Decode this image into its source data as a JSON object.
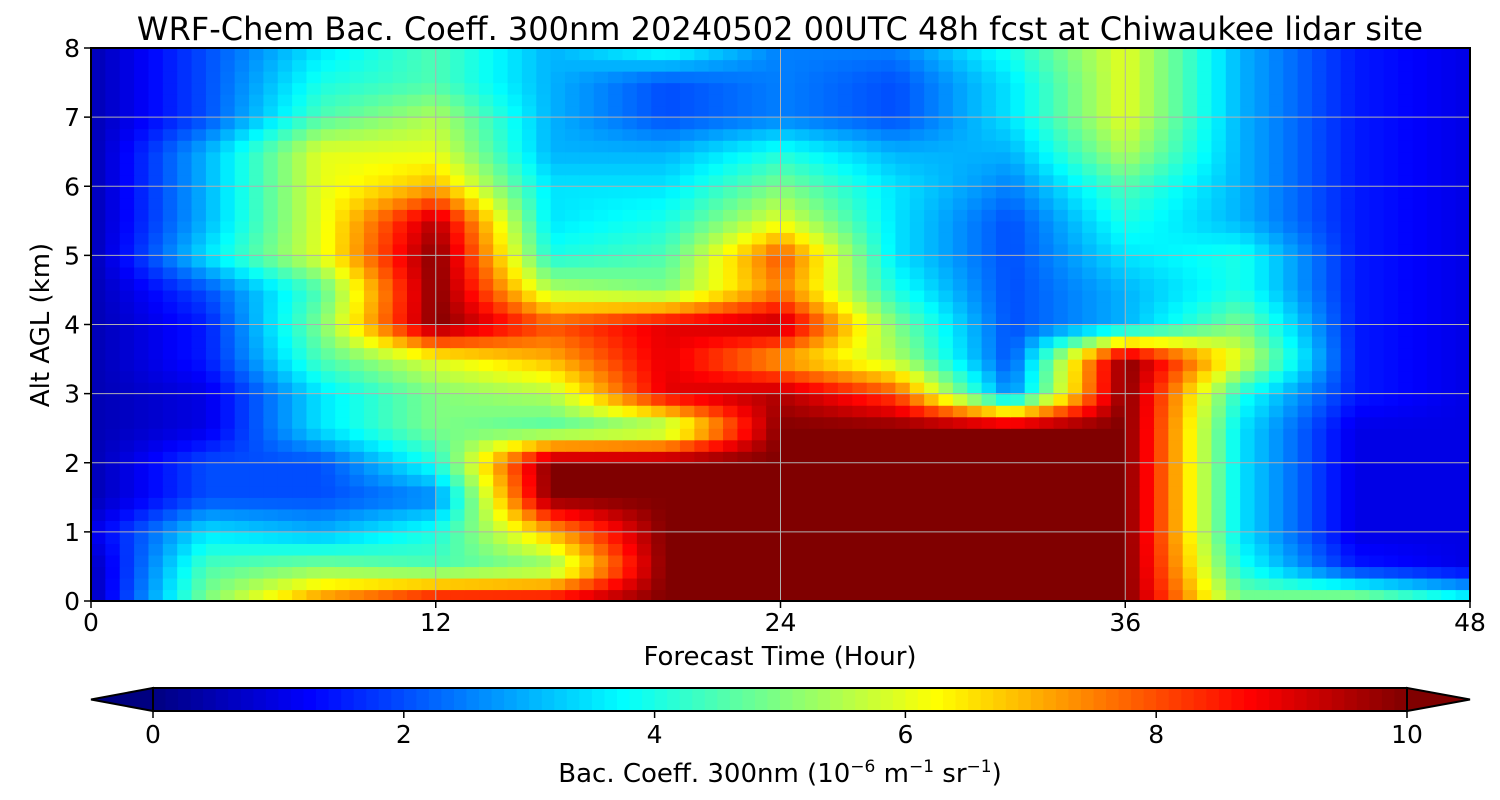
{
  "chart_data": {
    "type": "heatmap",
    "title": "WRF-Chem Bac. Coeff. 300nm  20240502 00UTC 48h fcst at Chiwaukee lidar site",
    "xlabel": "Forecast Time (Hour)",
    "ylabel": "Alt AGL (km)",
    "xlim": [
      0,
      48
    ],
    "ylim": [
      0,
      8
    ],
    "x_ticks": [
      0,
      12,
      24,
      36,
      48
    ],
    "y_ticks": [
      0,
      1,
      2,
      3,
      4,
      5,
      6,
      7,
      8
    ],
    "grid": true,
    "colormap": "jet",
    "colorbar": {
      "orientation": "horizontal",
      "placement": "bottom",
      "label": "Bac. Coeff. 300nm  (10",
      "label_exponent_1": "−6",
      "label_unit_1": " m",
      "label_exponent_2": "−1",
      "label_unit_2": " sr",
      "label_exponent_3": "−1",
      "label_close": ")",
      "range": [
        0,
        10
      ],
      "ticks": [
        0,
        2,
        4,
        6,
        8,
        10
      ],
      "extend": "both"
    },
    "x": [
      0,
      4,
      8,
      12,
      16,
      20,
      24,
      28,
      32,
      36,
      40,
      44,
      48
    ],
    "y": [
      0,
      0.5,
      1,
      1.5,
      2,
      2.5,
      3,
      3.5,
      4,
      4.5,
      5,
      5.5,
      6,
      6.5,
      7,
      7.5,
      8
    ],
    "z": [
      [
        0.5,
        5.0,
        7.5,
        9.0,
        9.0,
        10.0,
        10.0,
        10.0,
        10.0,
        10.0,
        5.0,
        5.5,
        4.0
      ],
      [
        0.5,
        4.5,
        5.0,
        4.5,
        5.0,
        10.0,
        10.0,
        10.0,
        10.0,
        10.0,
        4.0,
        1.5,
        1.0
      ],
      [
        1.0,
        3.5,
        3.0,
        4.0,
        7.0,
        10.0,
        10.0,
        10.0,
        10.0,
        10.0,
        3.5,
        1.0,
        1.0
      ],
      [
        0.5,
        2.0,
        2.0,
        2.5,
        10.0,
        10.0,
        10.0,
        10.0,
        10.0,
        10.0,
        3.5,
        1.0,
        1.0
      ],
      [
        0.5,
        2.0,
        2.0,
        4.0,
        10.0,
        10.0,
        10.0,
        10.0,
        10.0,
        10.0,
        3.5,
        1.0,
        1.0
      ],
      [
        0.5,
        1.0,
        3.5,
        5.0,
        4.5,
        5.0,
        10.0,
        10.0,
        10.0,
        10.0,
        3.5,
        1.0,
        1.0
      ],
      [
        0.5,
        1.0,
        3.5,
        5.0,
        5.5,
        9.0,
        9.5,
        8.0,
        2.5,
        10.0,
        4.0,
        1.5,
        1.0
      ],
      [
        0.5,
        1.5,
        4.5,
        6.0,
        7.0,
        9.0,
        7.0,
        5.5,
        2.0,
        10.0,
        6.0,
        1.5,
        1.0
      ],
      [
        0.5,
        1.5,
        5.0,
        10.0,
        8.0,
        9.0,
        9.5,
        5.0,
        2.0,
        3.0,
        5.0,
        1.5,
        1.0
      ],
      [
        0.5,
        2.0,
        4.5,
        10.0,
        5.5,
        5.0,
        7.5,
        4.0,
        2.0,
        3.0,
        4.0,
        1.5,
        1.0
      ],
      [
        0.5,
        3.5,
        6.0,
        10.0,
        4.0,
        4.5,
        8.0,
        3.5,
        2.0,
        3.5,
        4.0,
        1.5,
        1.0
      ],
      [
        0.5,
        3.0,
        6.0,
        9.5,
        3.5,
        4.0,
        6.0,
        3.5,
        2.0,
        4.0,
        3.0,
        1.5,
        1.0
      ],
      [
        0.5,
        3.0,
        6.0,
        7.0,
        3.5,
        3.5,
        5.0,
        3.5,
        2.5,
        4.5,
        3.0,
        1.5,
        1.0
      ],
      [
        0.5,
        3.0,
        6.0,
        6.0,
        3.0,
        3.0,
        4.0,
        3.0,
        3.0,
        5.5,
        3.0,
        1.5,
        1.0
      ],
      [
        0.5,
        2.0,
        4.5,
        5.5,
        3.0,
        2.0,
        2.5,
        2.0,
        3.5,
        6.0,
        3.0,
        1.5,
        1.0
      ],
      [
        0.5,
        2.0,
        4.0,
        4.5,
        3.0,
        2.0,
        2.5,
        2.0,
        3.5,
        6.0,
        3.0,
        1.5,
        1.0
      ],
      [
        0.5,
        2.0,
        3.5,
        4.5,
        3.0,
        4.0,
        2.5,
        2.5,
        4.0,
        6.0,
        3.0,
        1.5,
        1.0
      ]
    ]
  }
}
